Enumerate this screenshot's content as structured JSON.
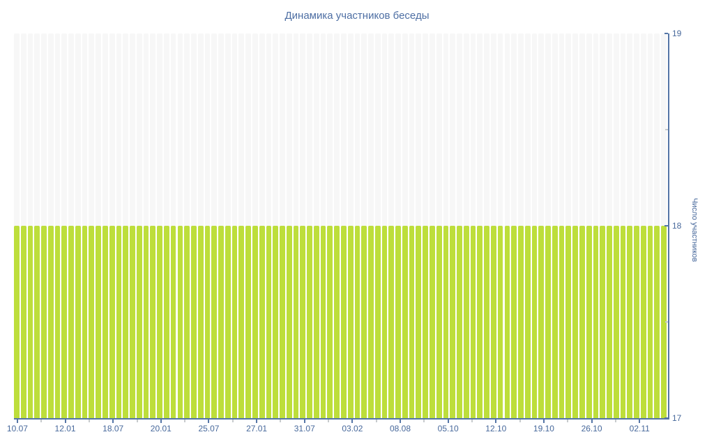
{
  "chart": {
    "title": "Динамика участников беседы",
    "y_axis_title": "Число участников",
    "colors": {
      "bar": "#bdde3b",
      "bar_track": "#f7f7f7",
      "axis_line": "#5576a7",
      "minor_tick": "#c6cacd",
      "title_text": "#4d6ea3",
      "tick_text": "#47689b",
      "plot_background": "#ffffff"
    }
  },
  "chart_data": {
    "type": "bar",
    "title": "Динамика участников беседы",
    "xlabel": "",
    "ylabel": "Число участников",
    "ylim": [
      17,
      19
    ],
    "y_ticks": [
      17,
      18,
      19
    ],
    "y_minor_ticks": [
      17.5,
      18.5
    ],
    "grid": false,
    "legend": "none",
    "y_axis_position": "right",
    "x_tick_labels": [
      "10.07",
      "12.01",
      "18.07",
      "20.01",
      "25.07",
      "27.01",
      "31.07",
      "03.02",
      "08.08",
      "05.10",
      "12.10",
      "19.10",
      "26.10",
      "02.11"
    ],
    "bars_per_label_interval": 7,
    "num_bars": 96,
    "constant_value": 18,
    "values": [
      18,
      18,
      18,
      18,
      18,
      18,
      18,
      18,
      18,
      18,
      18,
      18,
      18,
      18,
      18,
      18,
      18,
      18,
      18,
      18,
      18,
      18,
      18,
      18,
      18,
      18,
      18,
      18,
      18,
      18,
      18,
      18,
      18,
      18,
      18,
      18,
      18,
      18,
      18,
      18,
      18,
      18,
      18,
      18,
      18,
      18,
      18,
      18,
      18,
      18,
      18,
      18,
      18,
      18,
      18,
      18,
      18,
      18,
      18,
      18,
      18,
      18,
      18,
      18,
      18,
      18,
      18,
      18,
      18,
      18,
      18,
      18,
      18,
      18,
      18,
      18,
      18,
      18,
      18,
      18,
      18,
      18,
      18,
      18,
      18,
      18,
      18,
      18,
      18,
      18,
      18,
      18,
      18,
      18,
      18,
      18
    ]
  }
}
